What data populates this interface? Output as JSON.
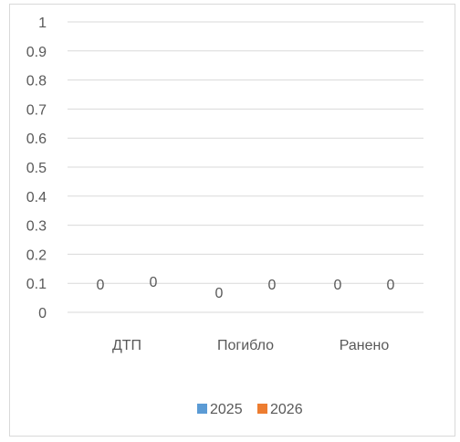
{
  "chart_data": {
    "type": "bar",
    "categories": [
      "ДТП",
      "Погибло",
      "Ранено"
    ],
    "series": [
      {
        "name": "2025",
        "values": [
          0,
          0,
          0
        ],
        "color": "#5b9bd5"
      },
      {
        "name": "2026",
        "values": [
          0,
          0,
          0
        ],
        "color": "#ed7d31"
      }
    ],
    "ylim": [
      0,
      1
    ],
    "yticks": [
      "0",
      "0.1",
      "0.2",
      "0.3",
      "0.4",
      "0.5",
      "0.6",
      "0.7",
      "0.8",
      "0.9",
      "1"
    ],
    "data_labels": [
      [
        "0",
        "0",
        "0"
      ],
      [
        "0",
        "0",
        "0"
      ]
    ],
    "grid": true,
    "legend": "bottom"
  }
}
